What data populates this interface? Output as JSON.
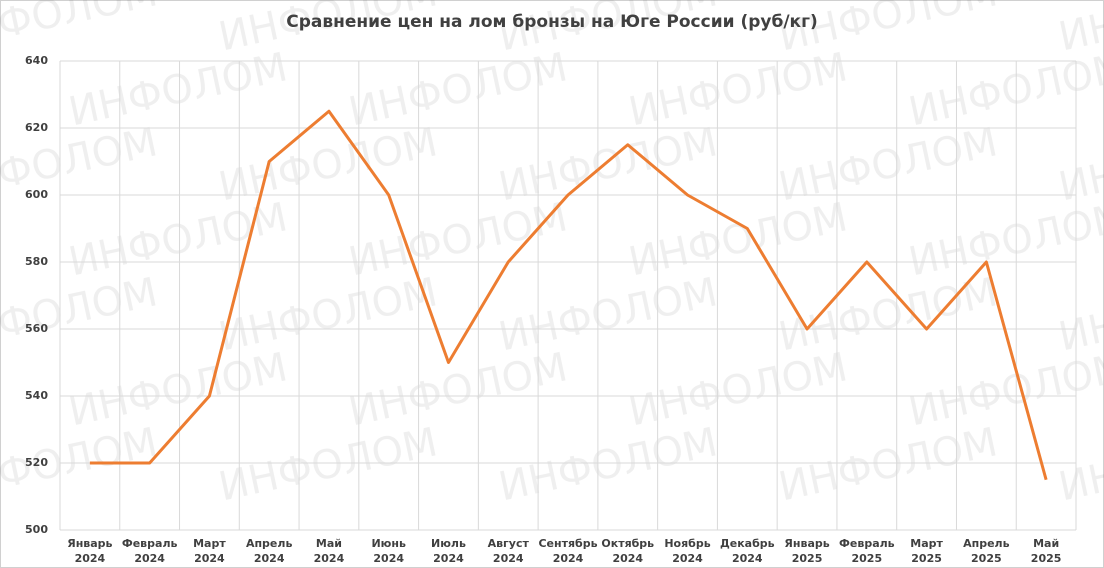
{
  "chart_data": {
    "type": "line",
    "title": "Сравнение цен на лом бронзы на Юге России (руб/кг)",
    "watermark": "ИНФОЛОМ",
    "categories": [
      "Январь 2024",
      "Февраль 2024",
      "Март 2024",
      "Апрель 2024",
      "Май 2024",
      "Июнь 2024",
      "Июль 2024",
      "Август 2024",
      "Сентябрь 2024",
      "Октябрь 2024",
      "Ноябрь 2024",
      "Декабрь 2024",
      "Январь 2025",
      "Февраль 2025",
      "Март 2025",
      "Апрель 2025",
      "Май 2025"
    ],
    "series": [
      {
        "color": "#ED7D31",
        "values": [
          520,
          520,
          540,
          610,
          625,
          600,
          550,
          580,
          600,
          615,
          600,
          590,
          560,
          580,
          560,
          580,
          515
        ]
      }
    ],
    "ylim": [
      500,
      640
    ],
    "yticks": [
      500,
      520,
      540,
      560,
      580,
      600,
      620,
      640
    ],
    "grid": true
  }
}
